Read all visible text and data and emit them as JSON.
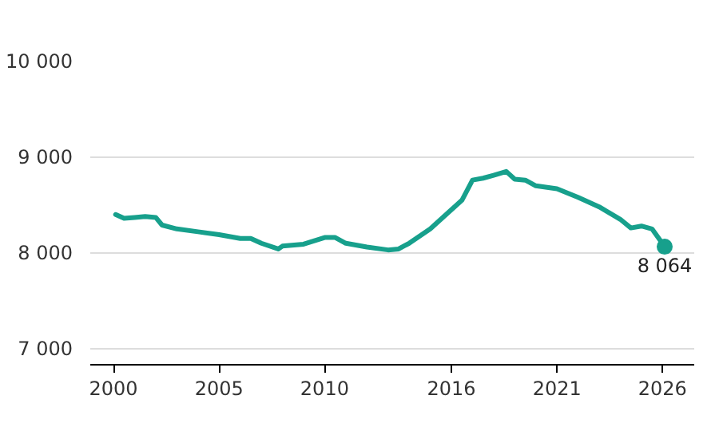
{
  "chart_data": {
    "type": "line",
    "x": [
      2000.1,
      2000.5,
      2001,
      2001.5,
      2002,
      2002.3,
      2003,
      2004,
      2005,
      2006,
      2006.5,
      2007,
      2007.8,
      2008,
      2009,
      2010,
      2010.5,
      2011,
      2012,
      2013,
      2013.5,
      2014,
      2015,
      2016,
      2016.5,
      2017,
      2017.5,
      2018,
      2018.6,
      2019,
      2019.5,
      2020,
      2021,
      2022,
      2023,
      2024,
      2024.5,
      2025,
      2025.5,
      2026.1
    ],
    "series": [
      {
        "color": "#17a08c",
        "values": [
          8400,
          8360,
          8370,
          8380,
          8370,
          8290,
          8250,
          8220,
          8190,
          8150,
          8150,
          8100,
          8040,
          8070,
          8090,
          8160,
          8160,
          8100,
          8060,
          8030,
          8040,
          8100,
          8250,
          8450,
          8550,
          8760,
          8780,
          8810,
          8850,
          8770,
          8760,
          8700,
          8670,
          8580,
          8480,
          8350,
          8260,
          8280,
          8250,
          8064
        ],
        "value_labels": [
          null,
          null,
          null,
          null,
          null,
          null,
          null,
          null,
          null,
          null,
          null,
          null,
          null,
          null,
          null,
          null,
          null,
          null,
          null,
          null,
          null,
          null,
          null,
          null,
          null,
          null,
          null,
          null,
          null,
          null,
          null,
          null,
          null,
          null,
          null,
          null,
          null,
          null,
          null,
          "8 064"
        ]
      }
    ],
    "xlim": [
      1998.9,
      2027.5
    ],
    "xticks": [
      2000,
      2005,
      2010,
      2016,
      2021,
      2026
    ],
    "ylim": [
      6830,
      10000
    ],
    "yticks": [
      {
        "value": 7000,
        "label": "7 000"
      },
      {
        "value": 8000,
        "label": "8 000"
      },
      {
        "value": 9000,
        "label": "9 000"
      },
      {
        "value": 10000,
        "label": "10 000"
      }
    ],
    "grid": "y",
    "marker": "none",
    "line_style": "solid"
  }
}
